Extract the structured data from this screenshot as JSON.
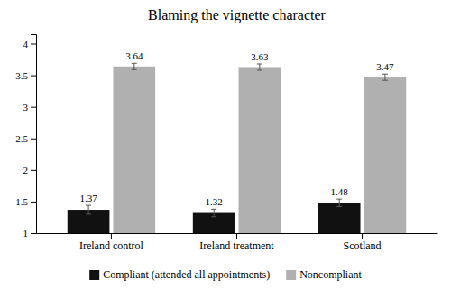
{
  "chart_data": {
    "type": "bar",
    "title": "Blaming the vignette character",
    "categories": [
      "Ireland control",
      "Ireland treatment",
      "Scotland"
    ],
    "series": [
      {
        "name": "Compliant (attended all appointments)",
        "color": "#111111",
        "values": [
          1.37,
          1.32,
          1.48
        ],
        "errors": [
          0.07,
          0.06,
          0.06
        ]
      },
      {
        "name": "Noncompliant",
        "color": "#b0b0b0",
        "values": [
          3.64,
          3.63,
          3.47
        ],
        "errors": [
          0.05,
          0.05,
          0.05
        ]
      }
    ],
    "ylim": [
      1,
      4.15
    ],
    "yticks": [
      1,
      1.5,
      2,
      2.5,
      3,
      3.5,
      4
    ],
    "grid": false,
    "legend": "bottom",
    "data_labels": true
  }
}
